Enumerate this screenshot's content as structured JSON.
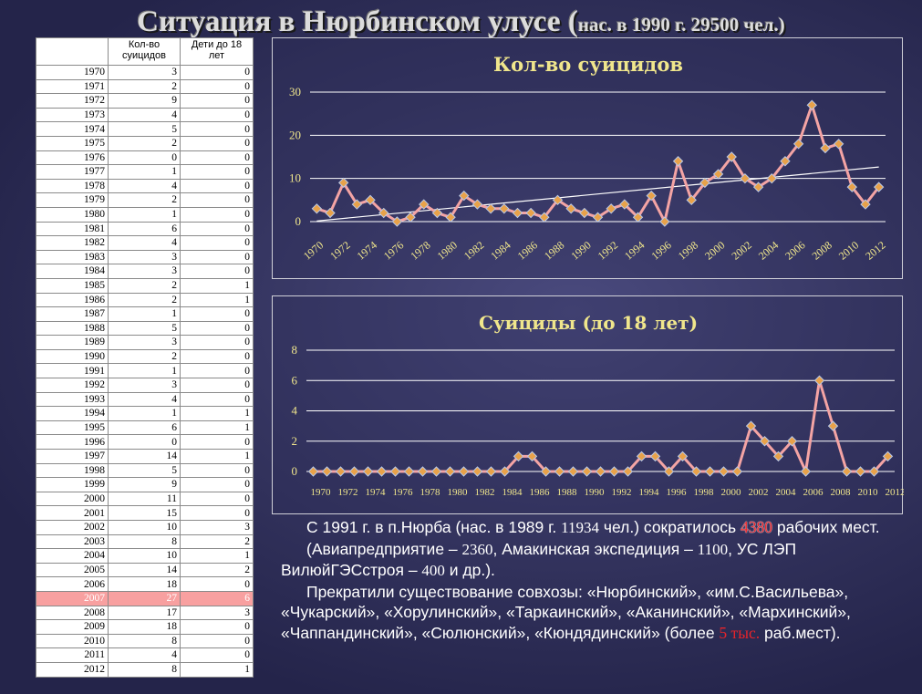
{
  "title": {
    "main": "Ситуация в Нюрбинском улусе (",
    "sub": "нас. в 1990 г. 29500 чел.)"
  },
  "table": {
    "headers": [
      "",
      "Кол-во суицидов",
      "Дети до 18 лет"
    ],
    "rows": [
      [
        "1970",
        "3",
        "0"
      ],
      [
        "1971",
        "2",
        "0"
      ],
      [
        "1972",
        "9",
        "0"
      ],
      [
        "1973",
        "4",
        "0"
      ],
      [
        "1974",
        "5",
        "0"
      ],
      [
        "1975",
        "2",
        "0"
      ],
      [
        "1976",
        "0",
        "0"
      ],
      [
        "1977",
        "1",
        "0"
      ],
      [
        "1978",
        "4",
        "0"
      ],
      [
        "1979",
        "2",
        "0"
      ],
      [
        "1980",
        "1",
        "0"
      ],
      [
        "1981",
        "6",
        "0"
      ],
      [
        "1982",
        "4",
        "0"
      ],
      [
        "1983",
        "3",
        "0"
      ],
      [
        "1984",
        "3",
        "0"
      ],
      [
        "1985",
        "2",
        "1"
      ],
      [
        "1986",
        "2",
        "1"
      ],
      [
        "1987",
        "1",
        "0"
      ],
      [
        "1988",
        "5",
        "0"
      ],
      [
        "1989",
        "3",
        "0"
      ],
      [
        "1990",
        "2",
        "0"
      ],
      [
        "1991",
        "1",
        "0"
      ],
      [
        "1992",
        "3",
        "0"
      ],
      [
        "1993",
        "4",
        "0"
      ],
      [
        "1994",
        "1",
        "1"
      ],
      [
        "1995",
        "6",
        "1"
      ],
      [
        "1996",
        "0",
        "0"
      ],
      [
        "1997",
        "14",
        "1"
      ],
      [
        "1998",
        "5",
        "0"
      ],
      [
        "1999",
        "9",
        "0"
      ],
      [
        "2000",
        "11",
        "0"
      ],
      [
        "2001",
        "15",
        "0"
      ],
      [
        "2002",
        "10",
        "3"
      ],
      [
        "2003",
        "8",
        "2"
      ],
      [
        "2004",
        "10",
        "1"
      ],
      [
        "2005",
        "14",
        "2"
      ],
      [
        "2006",
        "18",
        "0"
      ],
      [
        "2007",
        "27",
        "6"
      ],
      [
        "2008",
        "17",
        "3"
      ],
      [
        "2009",
        "18",
        "0"
      ],
      [
        "2010",
        "8",
        "0"
      ],
      [
        "2011",
        "4",
        "0"
      ],
      [
        "2012",
        "8",
        "1"
      ]
    ],
    "highlight_row": "2007",
    "highlight_color": "#f8a0a0"
  },
  "chart_data": [
    {
      "type": "line",
      "title": "Кол-во суицидов",
      "x": [
        1970,
        1971,
        1972,
        1973,
        1974,
        1975,
        1976,
        1977,
        1978,
        1979,
        1980,
        1981,
        1982,
        1983,
        1984,
        1985,
        1986,
        1987,
        1988,
        1989,
        1990,
        1991,
        1992,
        1993,
        1994,
        1995,
        1996,
        1997,
        1998,
        1999,
        2000,
        2001,
        2002,
        2003,
        2004,
        2005,
        2006,
        2007,
        2008,
        2009,
        2010,
        2011,
        2012
      ],
      "series": [
        {
          "values": [
            3,
            2,
            9,
            4,
            5,
            2,
            0,
            1,
            4,
            2,
            1,
            6,
            4,
            3,
            3,
            2,
            2,
            1,
            5,
            3,
            2,
            1,
            3,
            4,
            1,
            6,
            0,
            14,
            5,
            9,
            11,
            15,
            10,
            8,
            10,
            14,
            18,
            27,
            17,
            18,
            8,
            4,
            8
          ]
        }
      ],
      "trendline": true,
      "x_tick_labels": [
        "1970",
        "1972",
        "1974",
        "1976",
        "1978",
        "1980",
        "1982",
        "1984",
        "1986",
        "1988",
        "1990",
        "1992",
        "1994",
        "1996",
        "1998",
        "2000",
        "2002",
        "2004",
        "2006",
        "2008",
        "2010",
        "2012"
      ],
      "y_ticks": [
        0,
        10,
        20,
        30
      ],
      "ylim": [
        0,
        30
      ],
      "grid": true,
      "line_color": "#f4a4a4",
      "marker_color": "#e8a24a",
      "title_color": "#f0e68c"
    },
    {
      "type": "line",
      "title": "Суициды (до 18 лет)",
      "x": [
        1970,
        1971,
        1972,
        1973,
        1974,
        1975,
        1976,
        1977,
        1978,
        1979,
        1980,
        1981,
        1982,
        1983,
        1984,
        1985,
        1986,
        1987,
        1988,
        1989,
        1990,
        1991,
        1992,
        1993,
        1994,
        1995,
        1996,
        1997,
        1998,
        1999,
        2000,
        2001,
        2002,
        2003,
        2004,
        2005,
        2006,
        2007,
        2008,
        2009,
        2010,
        2011,
        2012
      ],
      "series": [
        {
          "values": [
            0,
            0,
            0,
            0,
            0,
            0,
            0,
            0,
            0,
            0,
            0,
            0,
            0,
            0,
            0,
            1,
            1,
            0,
            0,
            0,
            0,
            0,
            0,
            0,
            1,
            1,
            0,
            1,
            0,
            0,
            0,
            0,
            3,
            2,
            1,
            2,
            0,
            6,
            3,
            0,
            0,
            0,
            1
          ]
        }
      ],
      "x_tick_labels": [
        "1970",
        "1972",
        "1974",
        "1976",
        "1978",
        "1980",
        "1982",
        "1984",
        "1986",
        "1988",
        "1990",
        "1992",
        "1994",
        "1996",
        "1998",
        "2000",
        "2002",
        "2004",
        "2006",
        "2008",
        "2010",
        "2012"
      ],
      "y_ticks": [
        0,
        2,
        4,
        6,
        8
      ],
      "ylim": [
        0,
        8
      ],
      "grid": true,
      "line_color": "#f4a4a4",
      "marker_color": "#e8a24a",
      "title_color": "#f0e68c"
    }
  ],
  "text": {
    "p1_a": "С 1991 г. в п.Нюрба (нас. в 1989 г. ",
    "p1_num": "11934",
    "p1_b": " чел.) сократилось ",
    "p1_red": "4380",
    "p1_c": " рабочих мест.",
    "p2_a": "(Авиапредприятие – ",
    "p2_n1": "2360",
    "p2_b": ", Амакинская экспедиция – ",
    "p2_n2": "1100",
    "p2_c": ", УС ЛЭП ВилюйГЭСстроя – ",
    "p2_n3": "400",
    "p2_d": " и др.).",
    "p3_a": "Прекратили существование совхозы:  «Нюрбинский», «им.С.Васильева», «Чукарский», «Хорулинский», «Таркаинский», «Аканинский», «Мархинский», «Чаппандинский», «Сюлюнский», «Кюндядинский» (более ",
    "p3_red": "5 тыс.",
    "p3_b": " раб.мест)."
  }
}
